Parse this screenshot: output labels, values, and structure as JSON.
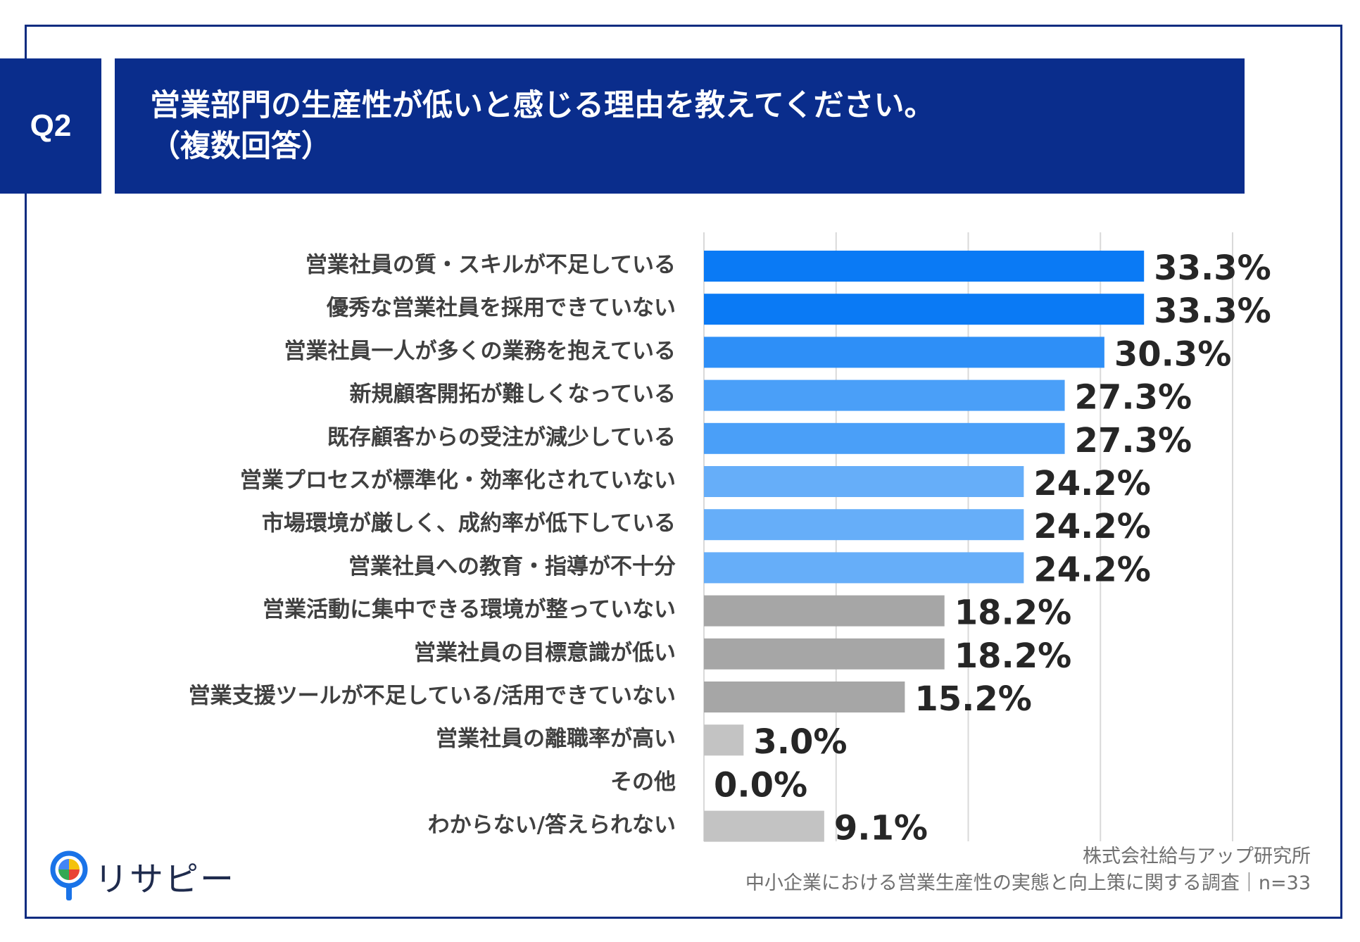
{
  "header": {
    "q_label": "Q2",
    "title_line1": "営業部門の生産性が低いと感じる理由を教えてください。",
    "title_line2": "（複数回答）"
  },
  "chart_data": {
    "type": "bar",
    "orientation": "horizontal",
    "title": "営業部門の生産性が低いと感じる理由を教えてください。（複数回答）",
    "xlim": [
      0,
      40
    ],
    "gridlines": [
      0,
      10,
      20,
      30,
      40
    ],
    "unit": "%",
    "categories": [
      "営業社員の質・スキルが不足している",
      "優秀な営業社員を採用できていない",
      "営業社員一人が多くの業務を抱えている",
      "新規顧客開拓が難しくなっている",
      "既存顧客からの受注が減少している",
      "営業プロセスが標準化・効率化されていない",
      "市場環境が厳しく、成約率が低下している",
      "営業社員への教育・指導が不十分",
      "営業活動に集中できる環境が整っていない",
      "営業社員の目標意識が低い",
      "営業支援ツールが不足している/活用できていない",
      "営業社員の離職率が高い",
      "その他",
      "わからない/答えられない"
    ],
    "values": [
      33.3,
      33.3,
      30.3,
      27.3,
      27.3,
      24.2,
      24.2,
      24.2,
      18.2,
      18.2,
      15.2,
      3.0,
      0.0,
      9.1
    ],
    "labels": [
      "33.3%",
      "33.3%",
      "30.3%",
      "27.3%",
      "27.3%",
      "24.2%",
      "24.2%",
      "24.2%",
      "18.2%",
      "18.2%",
      "15.2%",
      "3.0%",
      "0.0%",
      "9.1%"
    ],
    "colors": [
      "#0a7af5",
      "#0a7af5",
      "#2e8ff7",
      "#4a9ff8",
      "#4a9ff8",
      "#66aef9",
      "#66aef9",
      "#66aef9",
      "#a6a6a6",
      "#a6a6a6",
      "#a6a6a6",
      "#c3c3c3",
      "#c3c3c3",
      "#c3c3c3"
    ]
  },
  "logo": {
    "text": "リサピー"
  },
  "source": {
    "line1": "株式会社給与アップ研究所",
    "line2": "中小企業における営業生産性の実態と向上策に関する調査｜n=33"
  }
}
